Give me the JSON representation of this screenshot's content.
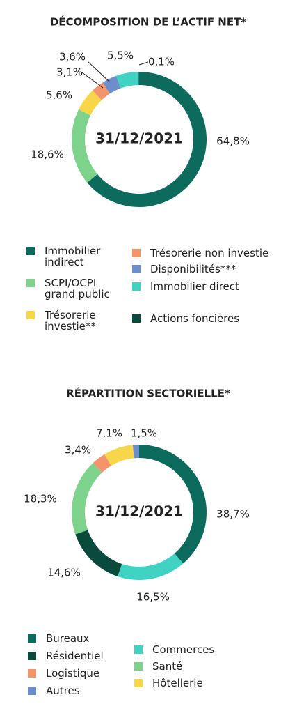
{
  "chart_data": [
    {
      "type": "pie",
      "donut": true,
      "title": "DÉCOMPOSITION DE L’ACTIF NET*",
      "center_label": "31/12/2021",
      "categories": [
        "Immobilier indirect",
        "SCPI/OCPI grand public",
        "Trésorerie investie**",
        "Trésorerie non investie",
        "Disponibilités***",
        "Immobilier direct",
        "Actions foncières"
      ],
      "values": [
        64.8,
        18.6,
        5.6,
        3.1,
        3.6,
        5.5,
        0.1
      ],
      "value_labels": [
        "64,8%",
        "18,6%",
        "5,6%",
        "3,1%",
        "3,6%",
        "5,5%",
        "0,1%"
      ],
      "colors": [
        "#0d6b5d",
        "#7dd38b",
        "#f8d64a",
        "#f4946a",
        "#6c8fcb",
        "#40d3c3",
        "#0a4a3d"
      ]
    },
    {
      "type": "pie",
      "donut": true,
      "title": "RÉPARTITION SECTORIELLE*",
      "center_label": "31/12/2021",
      "categories": [
        "Bureaux",
        "Commerces",
        "Résidentiel",
        "Santé",
        "Logistique",
        "Hôtellerie",
        "Autres"
      ],
      "values": [
        38.7,
        16.5,
        14.6,
        18.3,
        3.4,
        7.1,
        1.5
      ],
      "value_labels": [
        "38,7%",
        "16,5%",
        "14,6%",
        "18,3%",
        "3,4%",
        "7,1%",
        "1,5%"
      ],
      "colors": [
        "#0d6b5d",
        "#40d3c3",
        "#0a4a3d",
        "#7dd38b",
        "#f4946a",
        "#f8d64a",
        "#6c8fcb"
      ]
    }
  ]
}
